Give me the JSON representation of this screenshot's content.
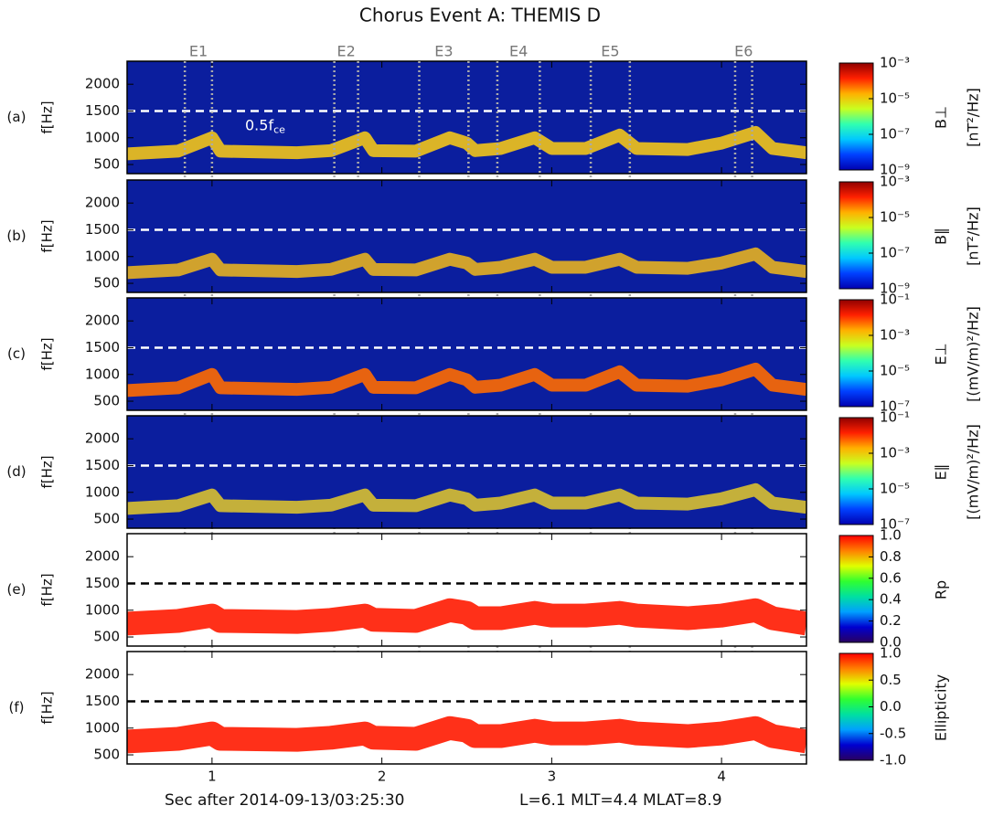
{
  "chart_data": [
    {
      "type": "spectrogram",
      "title": "Chorus Event A: THEMIS D",
      "panel_label": "(a)",
      "ylabel": "f[Hz]",
      "xlim": [
        0.5,
        4.5
      ],
      "xticks": [
        1,
        2,
        3,
        4
      ],
      "ylim": [
        330,
        2430
      ],
      "yticks": [
        500,
        1000,
        1500,
        2000
      ],
      "background": "#0b1e9e",
      "reference_line": {
        "value": 1500,
        "color": "#ffffff"
      },
      "annotation": {
        "base": "0.5f",
        "subscript": "ce"
      },
      "events": [
        {
          "label": "E1",
          "x": [
            0.84,
            1.0
          ]
        },
        {
          "label": "E2",
          "x": [
            1.72,
            1.86
          ]
        },
        {
          "label": "E3",
          "x": [
            2.22,
            2.51
          ]
        },
        {
          "label": "E4",
          "x": [
            2.68,
            2.93
          ]
        },
        {
          "label": "E5",
          "x": [
            3.23,
            3.46
          ]
        },
        {
          "label": "E6",
          "x": [
            4.08,
            4.18
          ]
        }
      ],
      "series": [
        {
          "color": "#f2c41a",
          "x": [
            0.5,
            0.8,
            1.0,
            1.05,
            1.5,
            1.7,
            1.9,
            1.95,
            2.2,
            2.4,
            2.5,
            2.55,
            2.7,
            2.9,
            3.0,
            3.2,
            3.4,
            3.5,
            3.8,
            4.0,
            4.2,
            4.3,
            4.5
          ],
          "values": [
            700,
            750,
            1000,
            750,
            720,
            760,
            1000,
            760,
            750,
            1000,
            900,
            760,
            800,
            1000,
            800,
            800,
            1050,
            800,
            780,
            900,
            1100,
            800,
            720
          ]
        }
      ],
      "colorbar": {
        "label": [
          "B⊥",
          "[nT²/Hz]"
        ],
        "log": true,
        "lim": [
          1e-09,
          0.001
        ],
        "ticks": [
          {
            "value": 0.001,
            "label": "10⁻³"
          },
          {
            "value": 1e-05,
            "label": "10⁻⁵"
          },
          {
            "value": 1e-07,
            "label": "10⁻⁷"
          },
          {
            "value": 1e-09,
            "label": "10⁻⁹"
          }
        ],
        "colormap": [
          "#0000b0",
          "#0040ff",
          "#00c8ff",
          "#30ffb0",
          "#c8ff20",
          "#ffb000",
          "#ff2000",
          "#900000"
        ]
      }
    },
    {
      "type": "spectrogram",
      "panel_label": "(b)",
      "ylabel": "f[Hz]",
      "xlim": [
        0.5,
        4.5
      ],
      "xticks": [
        1,
        2,
        3,
        4
      ],
      "ylim": [
        330,
        2430
      ],
      "yticks": [
        500,
        1000,
        1500,
        2000
      ],
      "background": "#0b1e9e",
      "reference_line": {
        "value": 1500,
        "color": "#ffffff"
      },
      "series": [
        {
          "color": "#e6b020",
          "x": [
            0.5,
            0.8,
            1.0,
            1.05,
            1.5,
            1.7,
            1.9,
            1.95,
            2.2,
            2.4,
            2.5,
            2.55,
            2.7,
            2.9,
            3.0,
            3.2,
            3.4,
            3.5,
            3.8,
            4.0,
            4.2,
            4.3,
            4.5
          ],
          "values": [
            700,
            750,
            950,
            750,
            720,
            760,
            950,
            760,
            750,
            950,
            880,
            760,
            800,
            950,
            800,
            800,
            950,
            800,
            780,
            880,
            1050,
            800,
            720
          ]
        }
      ],
      "colorbar": {
        "label": [
          "B∥",
          "[nT²/Hz]"
        ],
        "log": true,
        "lim": [
          1e-09,
          0.001
        ],
        "ticks": [
          {
            "value": 0.001,
            "label": "10⁻³"
          },
          {
            "value": 1e-05,
            "label": "10⁻⁵"
          },
          {
            "value": 1e-07,
            "label": "10⁻⁷"
          },
          {
            "value": 1e-09,
            "label": "10⁻⁹"
          }
        ],
        "colormap": [
          "#0000b0",
          "#0040ff",
          "#00c8ff",
          "#30ffb0",
          "#c8ff20",
          "#ffb000",
          "#ff2000",
          "#900000"
        ]
      }
    },
    {
      "type": "spectrogram",
      "panel_label": "(c)",
      "ylabel": "f[Hz]",
      "xlim": [
        0.5,
        4.5
      ],
      "xticks": [
        1,
        2,
        3,
        4
      ],
      "ylim": [
        330,
        2430
      ],
      "yticks": [
        500,
        1000,
        1500,
        2000
      ],
      "background": "#0b1e9e",
      "reference_line": {
        "value": 1500,
        "color": "#ffffff"
      },
      "series": [
        {
          "color": "#ff6a00",
          "x": [
            0.5,
            0.8,
            1.0,
            1.05,
            1.5,
            1.7,
            1.9,
            1.95,
            2.2,
            2.4,
            2.5,
            2.55,
            2.7,
            2.9,
            3.0,
            3.2,
            3.4,
            3.5,
            3.8,
            4.0,
            4.2,
            4.3,
            4.5
          ],
          "values": [
            700,
            750,
            1000,
            750,
            720,
            760,
            1000,
            760,
            750,
            1000,
            900,
            760,
            800,
            1000,
            800,
            800,
            1050,
            800,
            780,
            900,
            1100,
            800,
            720
          ]
        }
      ],
      "colorbar": {
        "label": [
          "E⊥",
          "[(mV/m)²/Hz]"
        ],
        "log": true,
        "lim": [
          1e-07,
          0.1
        ],
        "ticks": [
          {
            "value": 0.1,
            "label": "10⁻¹"
          },
          {
            "value": 0.001,
            "label": "10⁻³"
          },
          {
            "value": 1e-05,
            "label": "10⁻⁵"
          },
          {
            "value": 1e-07,
            "label": "10⁻⁷"
          }
        ],
        "colormap": [
          "#0000b0",
          "#0040ff",
          "#00c8ff",
          "#30ffb0",
          "#c8ff20",
          "#ffb000",
          "#ff2000",
          "#900000"
        ]
      }
    },
    {
      "type": "spectrogram",
      "panel_label": "(d)",
      "ylabel": "f[Hz]",
      "xlim": [
        0.5,
        4.5
      ],
      "xticks": [
        1,
        2,
        3,
        4
      ],
      "ylim": [
        330,
        2430
      ],
      "yticks": [
        500,
        1000,
        1500,
        2000
      ],
      "background": "#0b1e9e",
      "reference_line": {
        "value": 1500,
        "color": "#ffffff"
      },
      "series": [
        {
          "color": "#d8c030",
          "x": [
            0.5,
            0.8,
            1.0,
            1.05,
            1.5,
            1.7,
            1.9,
            1.95,
            2.2,
            2.4,
            2.5,
            2.55,
            2.7,
            2.9,
            3.0,
            3.2,
            3.4,
            3.5,
            3.8,
            4.0,
            4.2,
            4.3,
            4.5
          ],
          "values": [
            700,
            750,
            950,
            750,
            720,
            760,
            950,
            760,
            750,
            950,
            880,
            760,
            800,
            950,
            800,
            800,
            950,
            800,
            780,
            880,
            1050,
            800,
            720
          ]
        }
      ],
      "colorbar": {
        "label": [
          "E∥",
          "[(mV/m)²/Hz]"
        ],
        "log": true,
        "lim": [
          1e-07,
          0.1
        ],
        "ticks": [
          {
            "value": 0.1,
            "label": "10⁻¹"
          },
          {
            "value": 0.001,
            "label": "10⁻³"
          },
          {
            "value": 1e-05,
            "label": "10⁻⁵"
          },
          {
            "value": 1e-07,
            "label": "10⁻⁷"
          }
        ],
        "colormap": [
          "#0000b0",
          "#0040ff",
          "#00c8ff",
          "#30ffb0",
          "#c8ff20",
          "#ffb000",
          "#ff2000",
          "#900000"
        ]
      }
    },
    {
      "type": "spectrogram",
      "panel_label": "(e)",
      "ylabel": "f[Hz]",
      "xlim": [
        0.5,
        4.5
      ],
      "xticks": [
        1,
        2,
        3,
        4
      ],
      "ylim": [
        330,
        2430
      ],
      "yticks": [
        500,
        1000,
        1500,
        2000
      ],
      "background": "#ffffff",
      "reference_line": {
        "value": 1500,
        "color": "#000000"
      },
      "series": [
        {
          "color": "#ff1a00",
          "x": [
            0.5,
            0.8,
            1.0,
            1.05,
            1.5,
            1.7,
            1.9,
            1.95,
            2.2,
            2.4,
            2.5,
            2.55,
            2.7,
            2.9,
            3.0,
            3.2,
            3.4,
            3.5,
            3.8,
            4.0,
            4.2,
            4.3,
            4.5
          ],
          "values": [
            750,
            800,
            900,
            800,
            780,
            820,
            900,
            820,
            800,
            1000,
            950,
            850,
            850,
            950,
            900,
            900,
            950,
            900,
            850,
            900,
            1000,
            850,
            750
          ]
        }
      ],
      "colorbar": {
        "label": [
          "Rp"
        ],
        "log": false,
        "lim": [
          0,
          1
        ],
        "ticks": [
          {
            "value": 1,
            "label": "1.0"
          },
          0.8,
          0.6,
          0.4,
          0.2,
          {
            "value": 0,
            "label": "0.0"
          }
        ],
        "colormap": [
          "#2a0060",
          "#0000d0",
          "#00a0ff",
          "#00e0a0",
          "#30ff30",
          "#e0ff00",
          "#ff8000",
          "#ff0000"
        ]
      }
    },
    {
      "type": "spectrogram",
      "panel_label": "(f)",
      "ylabel": "f[Hz]",
      "xlabel": "Sec after 2014-09-13/03:25:30",
      "xnote": "L=6.1 MLT=4.4 MLAT=8.9",
      "xlim": [
        0.5,
        4.5
      ],
      "xticks": [
        1,
        2,
        3,
        4
      ],
      "ylim": [
        330,
        2430
      ],
      "yticks": [
        500,
        1000,
        1500,
        2000
      ],
      "background": "#ffffff",
      "reference_line": {
        "value": 1500,
        "color": "#000000"
      },
      "series": [
        {
          "color": "#ff1a00",
          "x": [
            0.5,
            0.8,
            1.0,
            1.05,
            1.5,
            1.7,
            1.9,
            1.95,
            2.2,
            2.4,
            2.5,
            2.55,
            2.7,
            2.9,
            3.0,
            3.2,
            3.4,
            3.5,
            3.8,
            4.0,
            4.2,
            4.3,
            4.5
          ],
          "values": [
            750,
            800,
            900,
            800,
            780,
            820,
            900,
            820,
            800,
            1000,
            950,
            850,
            850,
            950,
            900,
            900,
            950,
            900,
            850,
            900,
            1000,
            850,
            750
          ]
        }
      ],
      "colorbar": {
        "label": [
          "Ellipticity"
        ],
        "log": false,
        "lim": [
          -1,
          1
        ],
        "ticks": [
          {
            "value": 1,
            "label": "1.0"
          },
          0.5,
          {
            "value": 0,
            "label": "0.0"
          },
          -0.5,
          {
            "value": -1,
            "label": "-1.0"
          }
        ],
        "colormap": [
          "#2a0060",
          "#0000d0",
          "#00a0ff",
          "#00e0a0",
          "#30ff30",
          "#e0ff00",
          "#ff8000",
          "#ff0000"
        ]
      }
    }
  ]
}
